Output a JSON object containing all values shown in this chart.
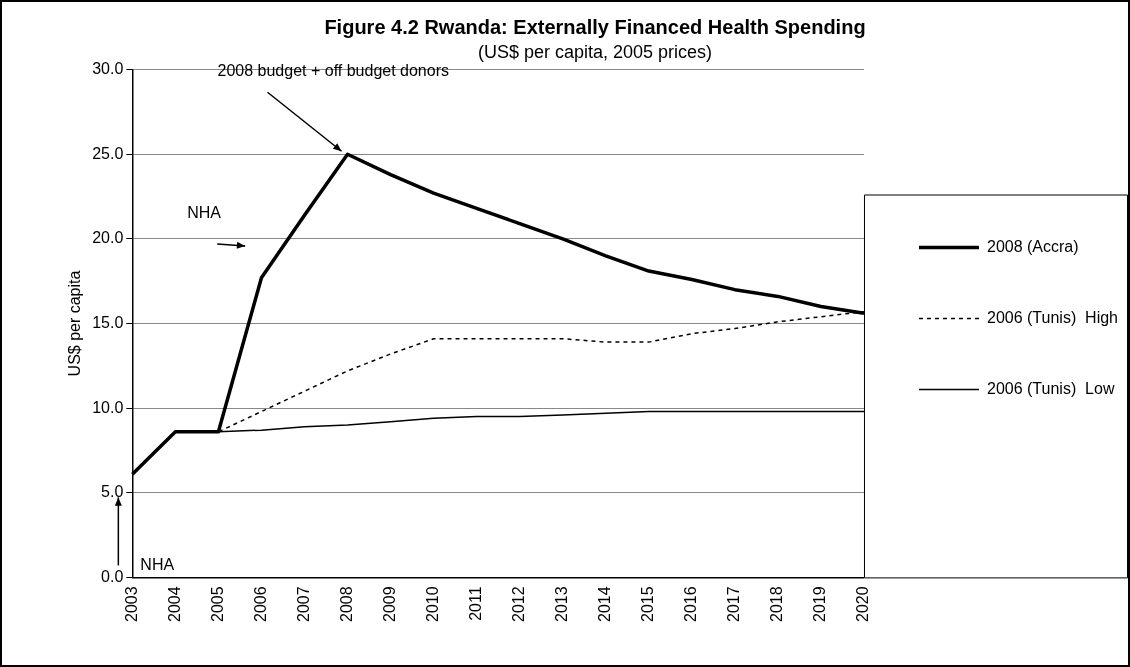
{
  "chart_data": {
    "type": "line",
    "title": "Figure 4.2 Rwanda: Externally Financed Health Spending",
    "subtitle": "(US$ per capita, 2005 prices)",
    "ylabel": "US$ per capita",
    "categories": [
      "2003",
      "2004",
      "2005",
      "2006",
      "2007",
      "2008",
      "2009",
      "2010",
      "2011",
      "2012",
      "2013",
      "2014",
      "2015",
      "2016",
      "2017",
      "2018",
      "2019",
      "2020"
    ],
    "series": [
      {
        "name": "2008 (Accra)",
        "color": "#000000",
        "line_style": "solid",
        "values": [
          6.1,
          8.6,
          8.6,
          17.7,
          21.4,
          25.0,
          23.8,
          22.7,
          21.8,
          20.9,
          20.0,
          19.0,
          18.1,
          17.6,
          17.0,
          16.6,
          16.0,
          15.6
        ]
      },
      {
        "name": "2006 (Tunis)  High",
        "color": "#000000",
        "line_style": "dashed",
        "values": [
          6.1,
          8.6,
          8.6,
          9.8,
          11.0,
          12.2,
          13.2,
          14.1,
          14.1,
          14.1,
          14.1,
          13.9,
          13.9,
          14.4,
          14.7,
          15.1,
          15.4,
          15.7
        ]
      },
      {
        "name": "2006 (Tunis)  Low",
        "color": "#000000",
        "line_style": "solid",
        "values": [
          6.1,
          8.6,
          8.6,
          8.7,
          8.9,
          9.0,
          9.2,
          9.4,
          9.5,
          9.5,
          9.6,
          9.7,
          9.8,
          9.8,
          9.8,
          9.8,
          9.8,
          9.8
        ]
      }
    ],
    "ylim": [
      0,
      30
    ],
    "yticks": [
      {
        "value": 0,
        "label": "0.0"
      },
      {
        "value": 5,
        "label": "5.0"
      },
      {
        "value": 10,
        "label": "10.0"
      },
      {
        "value": 15,
        "label": "15.0"
      },
      {
        "value": 20,
        "label": "20.0"
      },
      {
        "value": 25,
        "label": "25.0"
      },
      {
        "value": 30,
        "label": "30.0"
      }
    ],
    "grid": "y",
    "legend": "right",
    "marker": "none",
    "annotations": [
      {
        "text": "2008 budget + off budget donors",
        "x": "2008",
        "y": 25.0
      },
      "NHA",
      "NHA"
    ]
  }
}
